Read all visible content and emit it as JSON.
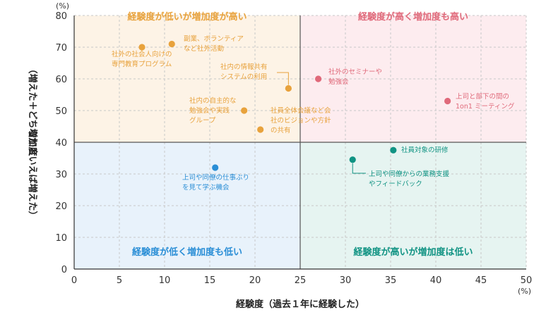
{
  "chart_data": {
    "type": "scatter",
    "title": "",
    "xlabel": "経験度（過去１年に経験した）",
    "ylabel_lines": [
      "増加度",
      "（増えた＋どちらかといえば増えた）"
    ],
    "x_unit": "(%)",
    "y_unit": "(%)",
    "xlim": [
      0,
      50
    ],
    "ylim": [
      0,
      80
    ],
    "x_ticks": [
      0,
      5,
      10,
      15,
      20,
      25,
      30,
      35,
      40,
      45,
      50
    ],
    "y_ticks": [
      0,
      10,
      20,
      30,
      40,
      50,
      60,
      70,
      80
    ],
    "grid": true,
    "divider": {
      "x": 25,
      "y": 40
    },
    "quadrants": [
      {
        "id": "tl",
        "label": "経験度が低いが増加度が高い",
        "fill": "#fdf3e6",
        "color": "#e8a23c"
      },
      {
        "id": "tr",
        "label": "経験度が高く増加度も高い",
        "fill": "#fdecef",
        "color": "#e0697a"
      },
      {
        "id": "bl",
        "label": "経験度が低く増加度も低い",
        "fill": "#e8f2fb",
        "color": "#2a8ed6"
      },
      {
        "id": "br",
        "label": "経験度が高いが増加度は低い",
        "fill": "#e6f4f1",
        "color": "#109383"
      }
    ],
    "points": [
      {
        "x": 7.5,
        "y": 70,
        "quadrant": "tl",
        "label": [
          "社外の社会人向けの",
          "専門教育プログラム"
        ]
      },
      {
        "x": 10.8,
        "y": 71,
        "quadrant": "tl",
        "label": [
          "副業、ボランティア",
          "など社外活動"
        ]
      },
      {
        "x": 23.7,
        "y": 57,
        "quadrant": "tl",
        "label": [
          "社内の情報共有",
          "システムの利用"
        ]
      },
      {
        "x": 18.8,
        "y": 50,
        "quadrant": "tl",
        "label": [
          "社内の自主的な",
          "勉強会や実践",
          "グループ"
        ]
      },
      {
        "x": 20.6,
        "y": 44,
        "quadrant": "tl",
        "label": [
          "社員全体会議など会",
          "社のビジョンや方針",
          "の共有"
        ]
      },
      {
        "x": 27.0,
        "y": 60,
        "quadrant": "tr",
        "label": [
          "社外のセミナーや",
          "勉強会"
        ]
      },
      {
        "x": 41.3,
        "y": 53,
        "quadrant": "tr",
        "label": [
          "上司と部下の間の",
          "1on1 ミーティング"
        ]
      },
      {
        "x": 15.6,
        "y": 32,
        "quadrant": "bl",
        "label": [
          "上司や同僚の仕事ぶり",
          "を見て学ぶ機会"
        ]
      },
      {
        "x": 35.3,
        "y": 37.5,
        "quadrant": "br",
        "label": [
          "社員対象の研修"
        ]
      },
      {
        "x": 30.8,
        "y": 34.5,
        "quadrant": "br",
        "label": [
          "上司や同僚からの業務支援",
          "やフィードバック"
        ]
      }
    ]
  }
}
